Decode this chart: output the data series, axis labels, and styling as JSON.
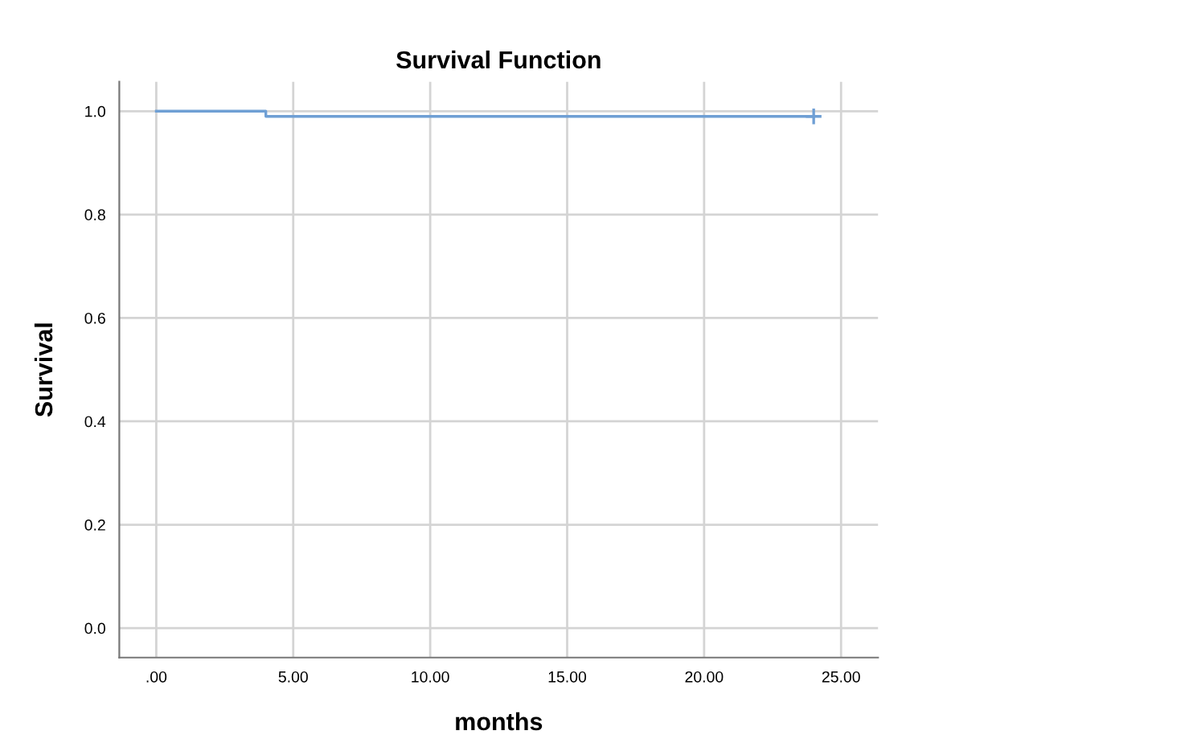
{
  "chart_data": {
    "type": "step",
    "title": "Survival Function",
    "xlabel": "months",
    "ylabel": "Survival",
    "xlim": [
      -1.35,
      26.35
    ],
    "ylim": [
      -0.057,
      1.057
    ],
    "xticks": [
      {
        "value": 0,
        "label": ".00"
      },
      {
        "value": 5,
        "label": "5.00"
      },
      {
        "value": 10,
        "label": "10.00"
      },
      {
        "value": 15,
        "label": "15.00"
      },
      {
        "value": 20,
        "label": "20.00"
      },
      {
        "value": 25,
        "label": "25.00"
      }
    ],
    "yticks": [
      {
        "value": 0,
        "label": "0.0"
      },
      {
        "value": 0.2,
        "label": "0.2"
      },
      {
        "value": 0.4,
        "label": "0.4"
      },
      {
        "value": 0.6,
        "label": "0.6"
      },
      {
        "value": 0.8,
        "label": "0.8"
      },
      {
        "value": 1,
        "label": "1.0"
      }
    ],
    "grid": true,
    "legend": false,
    "series": [
      {
        "color": "#6f9fd4",
        "x": [
          0,
          4,
          24
        ],
        "values": [
          1.0,
          0.99,
          0.99
        ]
      },
      {
        "type": "scatter",
        "color": "#6f9fd4",
        "marker": "cross",
        "x": [
          24
        ],
        "values": [
          0.99
        ]
      }
    ]
  }
}
